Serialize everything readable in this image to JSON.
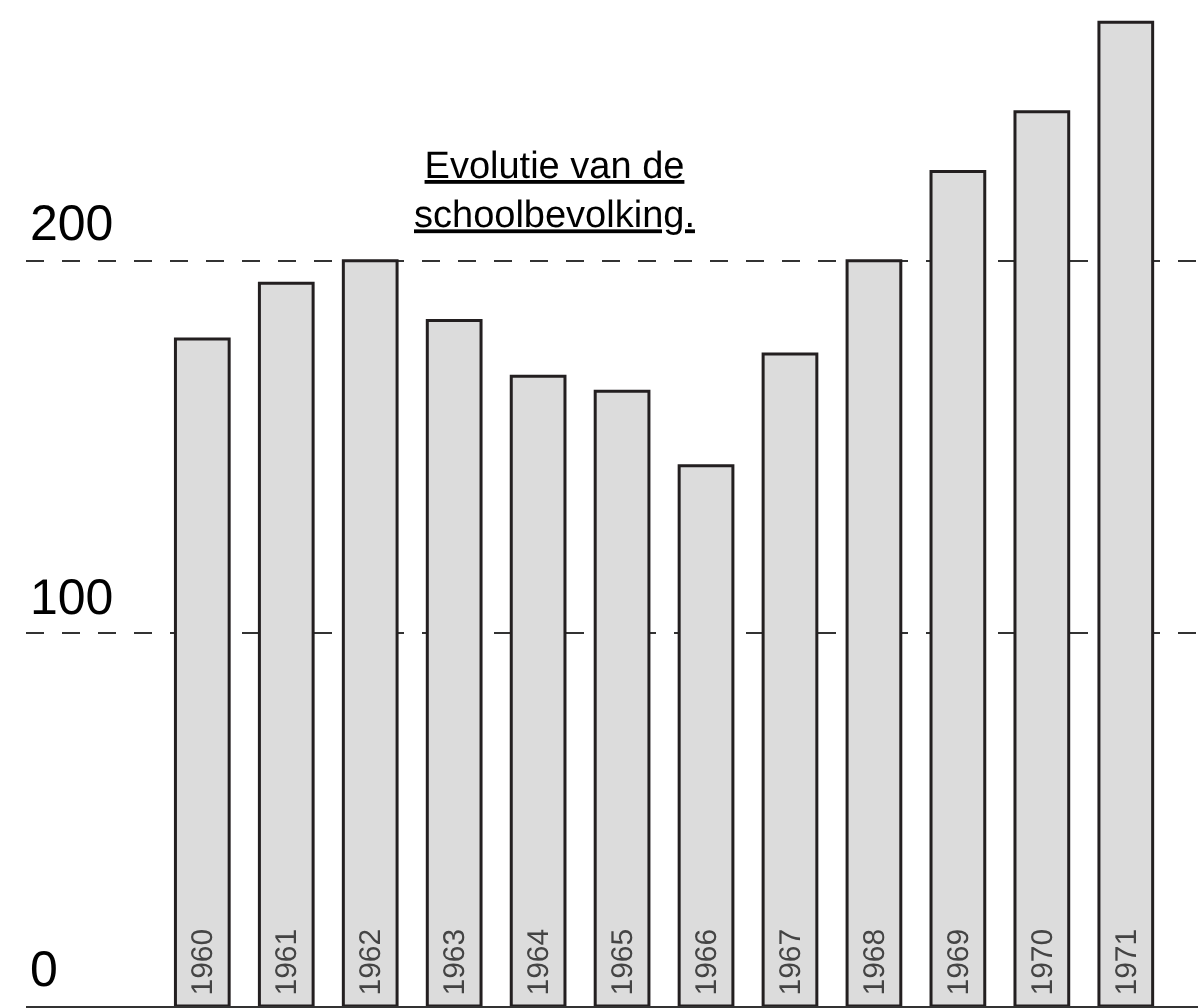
{
  "chart_data": {
    "type": "bar",
    "title": "Evolutie van de schoolbevolking.",
    "categories": [
      "1960",
      "1961",
      "1962",
      "1963",
      "1964",
      "1965",
      "1966",
      "1967",
      "1968",
      "1969",
      "1970",
      "1971"
    ],
    "values": [
      179,
      194,
      200,
      184,
      169,
      165,
      145,
      175,
      200,
      224,
      240,
      264
    ],
    "color": "#dcdcdc",
    "ylim": [
      0,
      270
    ],
    "yticks": [
      0,
      100,
      200
    ],
    "grid": "y",
    "line_style": "dashed",
    "legend": false
  }
}
